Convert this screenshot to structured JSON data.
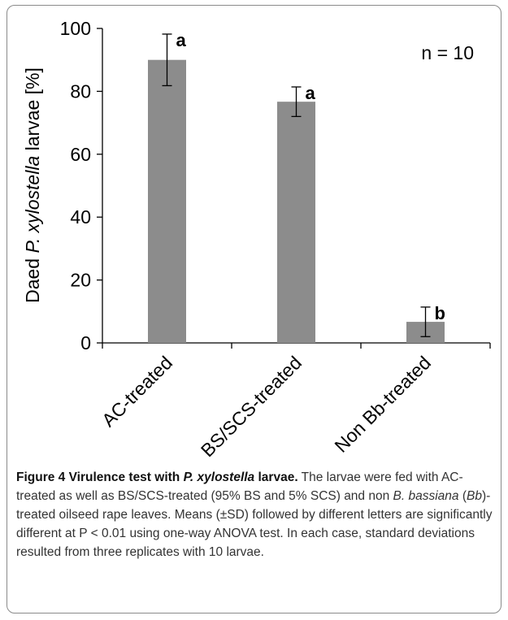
{
  "chart_data": {
    "type": "bar",
    "categories": [
      "AC-treated",
      "BS/SCS-treated",
      "Non Bb-treated"
    ],
    "values": [
      90,
      76.7,
      6.7
    ],
    "errors": [
      8.2,
      4.7,
      4.7
    ],
    "significance_letters": [
      "a",
      "a",
      "b"
    ],
    "ylabel_prefix": "Daed ",
    "ylabel_italic": "P. xylostella",
    "ylabel_suffix": " larvae [%]",
    "xlabel": "",
    "ylim": [
      0,
      100
    ],
    "yticks": [
      "0",
      "20",
      "40",
      "60",
      "80",
      "100"
    ],
    "annotation": "n = 10",
    "bar_color": "#8c8c8c",
    "grid": false
  },
  "caption": {
    "lead_1": "Figure 4 Virulence test with ",
    "lead_italic": "P. xylostella",
    "lead_2": " larvae.",
    "t1": " The larvae were fed with AC-treated as well as BS/SCS-treated (95% BS and 5% SCS) and non ",
    "i1": "B. bassiana",
    "t2": " (",
    "i2": "Bb",
    "t3": ")-treated oilseed rape leaves. Means (±SD) followed by different letters are significantly different at P < 0.01 using one-way ANOVA test. In each case, standard deviations resulted from three replicates with 10 larvae."
  }
}
